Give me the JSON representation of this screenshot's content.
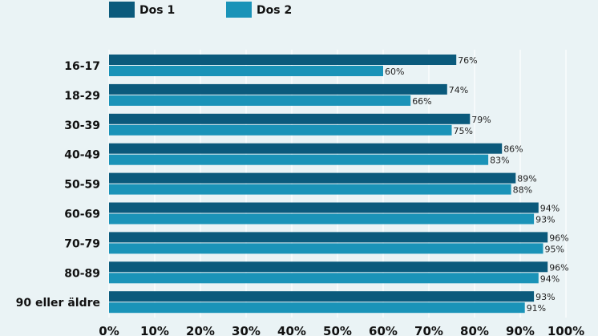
{
  "chart_data": {
    "type": "bar",
    "orientation": "horizontal",
    "title": "",
    "xlabel": "",
    "ylabel": "",
    "xlim": [
      0,
      100
    ],
    "grid": true,
    "legend_position": "top-left",
    "categories": [
      "16-17",
      "18-29",
      "30-39",
      "40-49",
      "50-59",
      "60-69",
      "70-79",
      "80-89",
      "90 eller äldre"
    ],
    "series": [
      {
        "name": "Dos 1",
        "color": "#0b5a7c",
        "values": [
          76,
          74,
          79,
          86,
          89,
          94,
          96,
          96,
          93
        ],
        "labels": [
          "76%",
          "74%",
          "79%",
          "86%",
          "89%",
          "94%",
          "96%",
          "96%",
          "93%"
        ]
      },
      {
        "name": "Dos 2",
        "color": "#1a93b8",
        "values": [
          60,
          66,
          75,
          83,
          88,
          93,
          95,
          94,
          91
        ],
        "labels": [
          "60%",
          "66%",
          "75%",
          "83%",
          "88%",
          "93%",
          "95%",
          "94%",
          "91%"
        ]
      }
    ],
    "x_ticks": [
      0,
      10,
      20,
      30,
      40,
      50,
      60,
      70,
      80,
      90,
      100
    ],
    "x_tick_labels": [
      "0%",
      "10%",
      "20%",
      "30%",
      "40%",
      "50%",
      "60%",
      "70%",
      "80%",
      "90%",
      "100%"
    ]
  }
}
